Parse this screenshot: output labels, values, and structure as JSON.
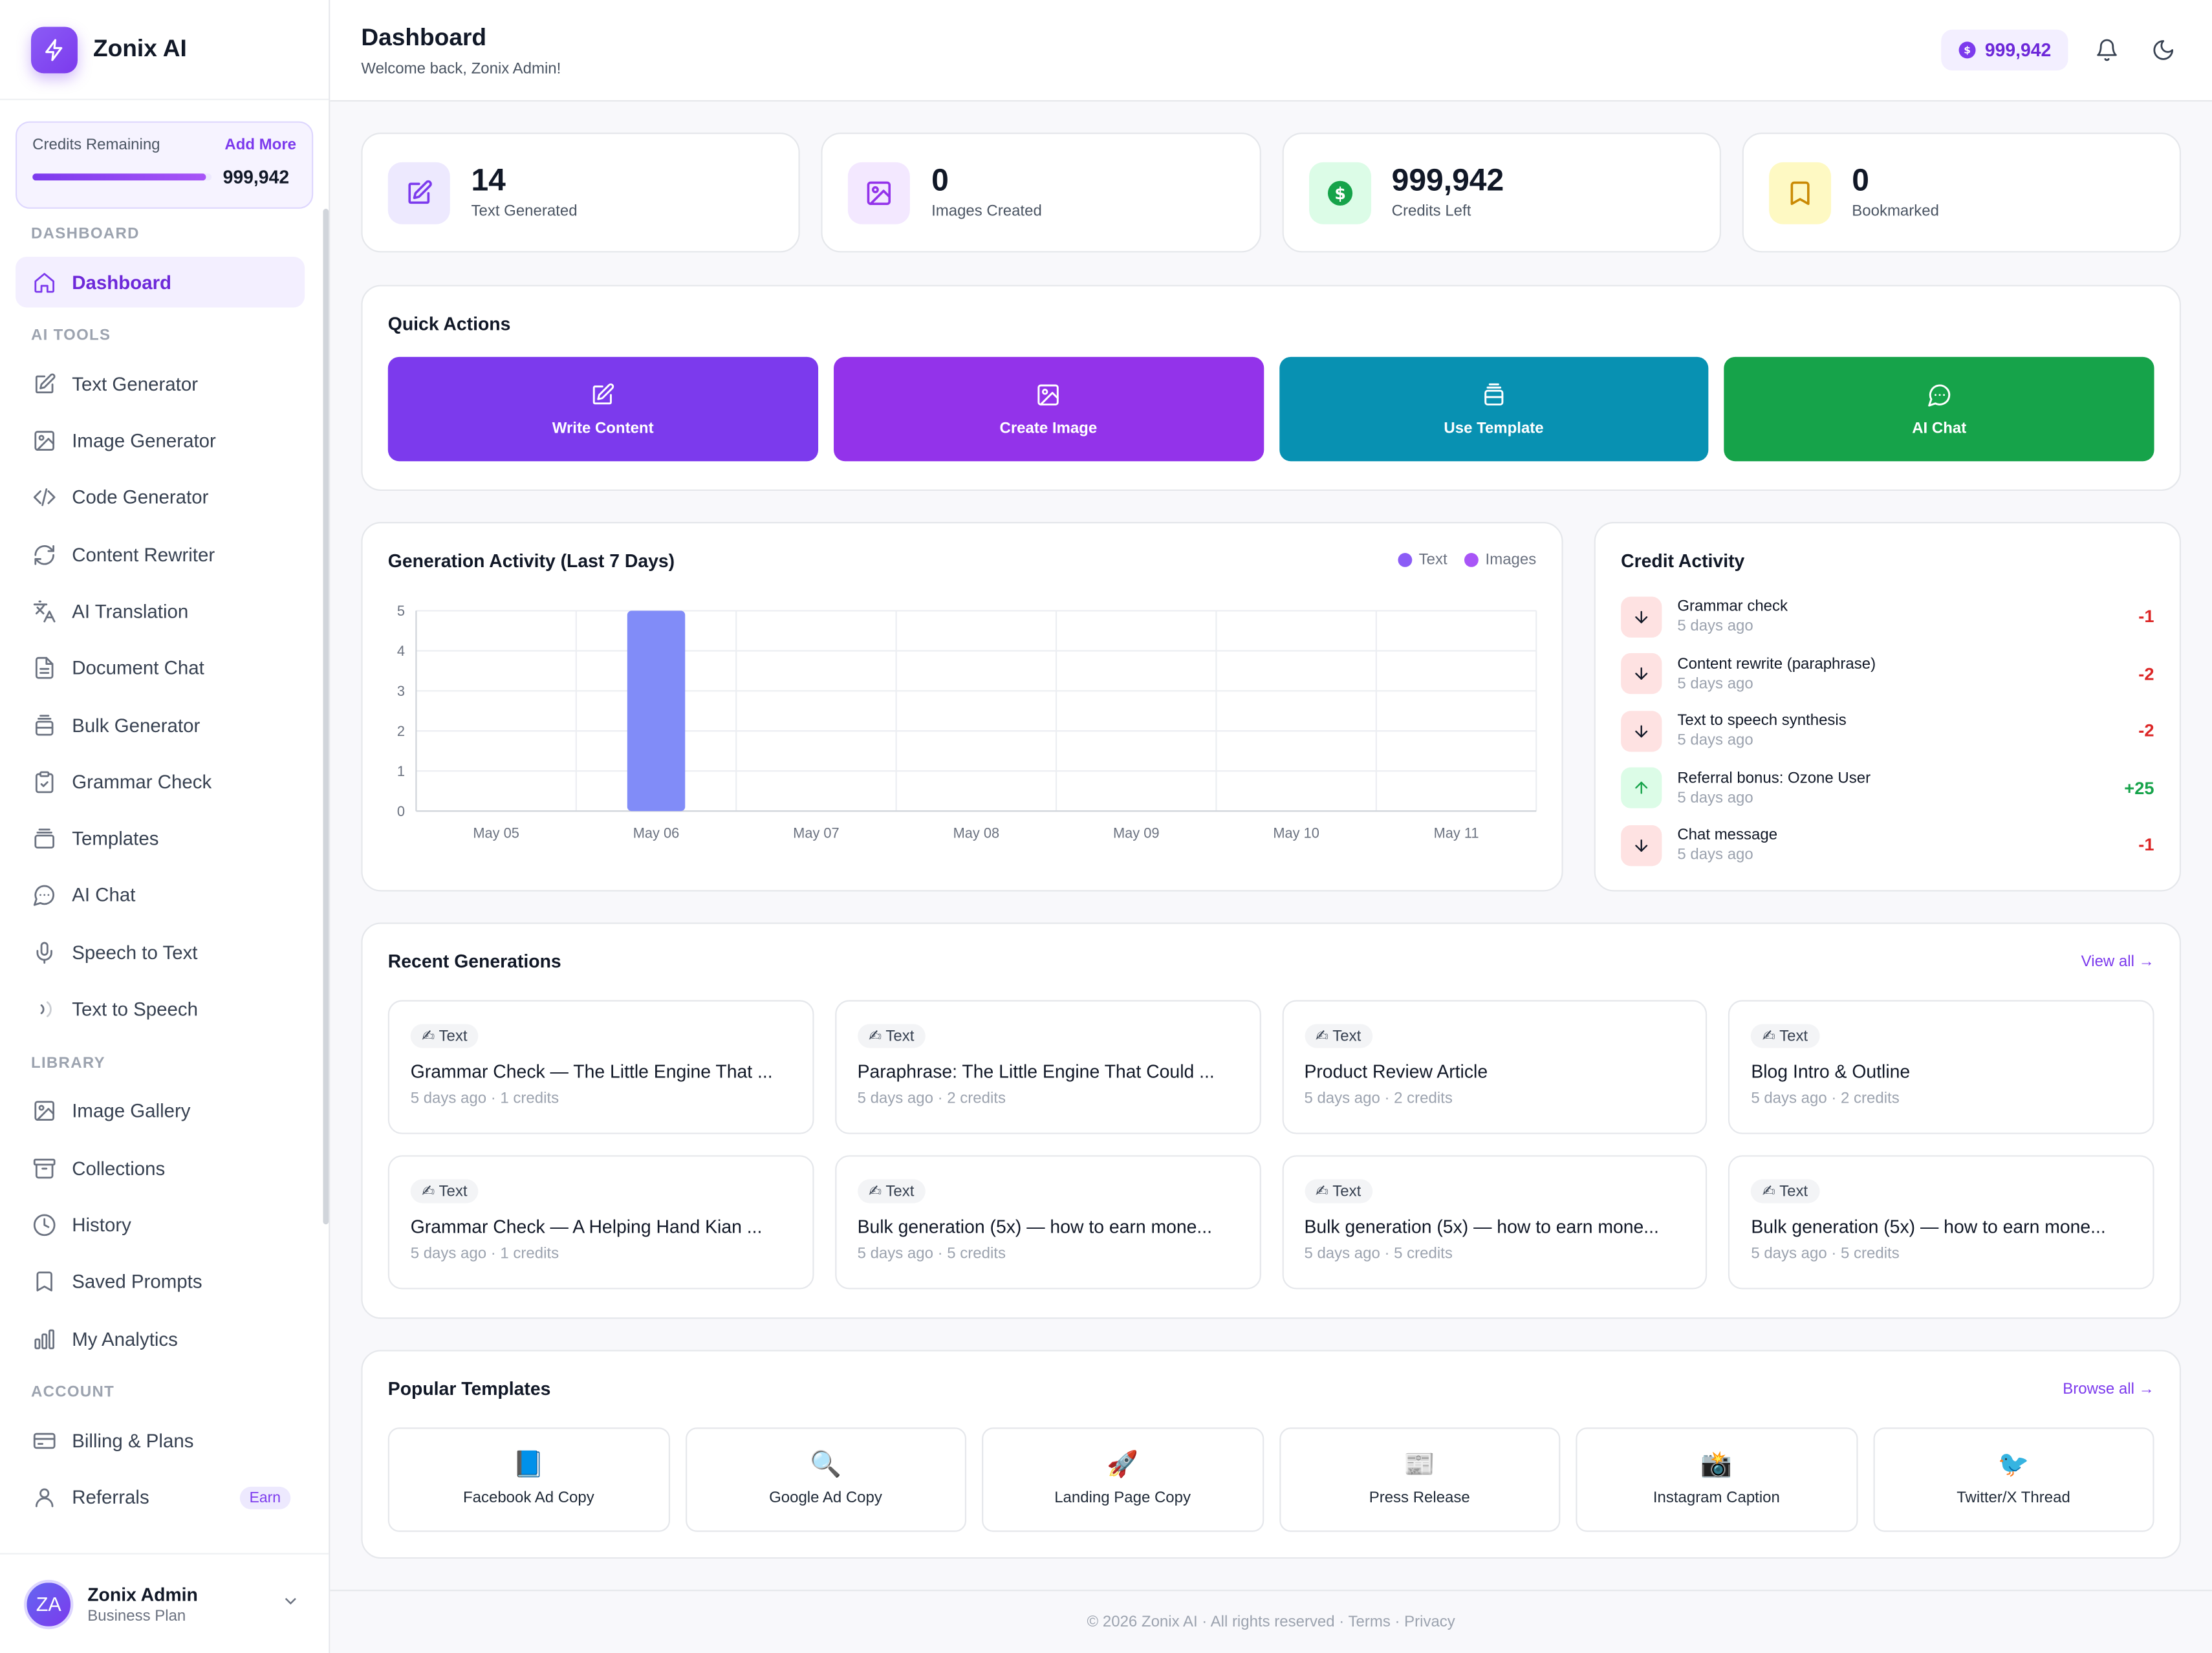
{
  "brand": {
    "name": "Zonix AI"
  },
  "credits_card": {
    "label": "Credits Remaining",
    "add_more": "Add More",
    "value": "999,942",
    "fill_fraction": 0.97
  },
  "nav": {
    "sections": [
      {
        "title": "DASHBOARD",
        "items": [
          {
            "label": "Dashboard",
            "icon": "home-icon",
            "active": true
          }
        ]
      },
      {
        "title": "AI TOOLS",
        "items": [
          {
            "label": "Text Generator",
            "icon": "edit-icon"
          },
          {
            "label": "Image Generator",
            "icon": "image-icon"
          },
          {
            "label": "Code Generator",
            "icon": "code-icon"
          },
          {
            "label": "Content Rewriter",
            "icon": "refresh-icon"
          },
          {
            "label": "AI Translation",
            "icon": "translate-icon"
          },
          {
            "label": "Document Chat",
            "icon": "document-icon"
          },
          {
            "label": "Bulk Generator",
            "icon": "layers-icon"
          },
          {
            "label": "Grammar Check",
            "icon": "clipboard-check-icon"
          },
          {
            "label": "Templates",
            "icon": "template-icon"
          },
          {
            "label": "AI Chat",
            "icon": "chat-icon"
          },
          {
            "label": "Speech to Text",
            "icon": "microphone-icon"
          },
          {
            "label": "Text to Speech",
            "icon": "speaker-icon"
          }
        ]
      },
      {
        "title": "LIBRARY",
        "items": [
          {
            "label": "Image Gallery",
            "icon": "image-icon"
          },
          {
            "label": "Collections",
            "icon": "archive-icon"
          },
          {
            "label": "History",
            "icon": "clock-icon"
          },
          {
            "label": "Saved Prompts",
            "icon": "bookmark-icon"
          },
          {
            "label": "My Analytics",
            "icon": "bar-chart-icon"
          }
        ]
      },
      {
        "title": "ACCOUNT",
        "items": [
          {
            "label": "Billing & Plans",
            "icon": "credit-card-icon"
          },
          {
            "label": "Referrals",
            "icon": "user-icon",
            "badge": "Earn"
          }
        ]
      }
    ]
  },
  "user": {
    "initials": "ZA",
    "name": "Zonix Admin",
    "plan": "Business Plan"
  },
  "header": {
    "title": "Dashboard",
    "subtitle": "Welcome back, Zonix Admin!",
    "credits": "999,942"
  },
  "stats": [
    {
      "value": "14",
      "label": "Text Generated",
      "icon": "edit-icon",
      "bg": "#ede9fe",
      "fg": "#7c3aed"
    },
    {
      "value": "0",
      "label": "Images Created",
      "icon": "image-icon",
      "bg": "#f3e8ff",
      "fg": "#9333ea"
    },
    {
      "value": "999,942",
      "label": "Credits Left",
      "icon": "dollar-icon",
      "bg": "#dcfce7",
      "fg": "#16a34a"
    },
    {
      "value": "0",
      "label": "Bookmarked",
      "icon": "bookmark-icon",
      "bg": "#fef9c3",
      "fg": "#ca8a04"
    }
  ],
  "quick_actions": {
    "title": "Quick Actions",
    "items": [
      {
        "label": "Write Content",
        "icon": "edit-icon",
        "color": "#7c3aed"
      },
      {
        "label": "Create Image",
        "icon": "image-icon",
        "color": "#9333ea"
      },
      {
        "label": "Use Template",
        "icon": "layers-icon",
        "color": "#0891b2"
      },
      {
        "label": "AI Chat",
        "icon": "chat-icon",
        "color": "#16a34a"
      }
    ]
  },
  "chart_data": {
    "type": "bar",
    "title": "Generation Activity (Last 7 Days)",
    "categories": [
      "May 05",
      "May 06",
      "May 07",
      "May 08",
      "May 09",
      "May 10",
      "May 11"
    ],
    "series": [
      {
        "name": "Text",
        "values": [
          0,
          5,
          0,
          0,
          0,
          0,
          0
        ],
        "color": "#818cf8"
      },
      {
        "name": "Images",
        "values": [
          0,
          0,
          0,
          0,
          0,
          0,
          0
        ],
        "color": "#a855f7"
      }
    ],
    "legend_colors": {
      "Text": "#8b5cf6",
      "Images": "#a855f7"
    },
    "ylim": [
      0,
      5
    ],
    "yticks": [
      "0",
      "1",
      "2",
      "3",
      "4",
      "5"
    ],
    "grid": true,
    "legend": "top-right"
  },
  "credit_activity": {
    "title": "Credit Activity",
    "items": [
      {
        "name": "Grammar check",
        "time": "5 days ago",
        "amount": "-1",
        "direction": "down"
      },
      {
        "name": "Content rewrite (paraphrase)",
        "time": "5 days ago",
        "amount": "-2",
        "direction": "down"
      },
      {
        "name": "Text to speech synthesis",
        "time": "5 days ago",
        "amount": "-2",
        "direction": "down"
      },
      {
        "name": "Referral bonus: Ozone User",
        "time": "5 days ago",
        "amount": "+25",
        "direction": "up"
      },
      {
        "name": "Chat message",
        "time": "5 days ago",
        "amount": "-1",
        "direction": "down"
      }
    ]
  },
  "recent": {
    "title": "Recent Generations",
    "view_all": "View all →",
    "items": [
      {
        "tag": "✍ Text",
        "title": "Grammar Check — The Little Engine That ...",
        "meta": "5 days ago · 1 credits"
      },
      {
        "tag": "✍ Text",
        "title": "Paraphrase: The Little Engine That Could ...",
        "meta": "5 days ago · 2 credits"
      },
      {
        "tag": "✍ Text",
        "title": "Product Review Article",
        "meta": "5 days ago · 2 credits"
      },
      {
        "tag": "✍ Text",
        "title": "Blog Intro & Outline",
        "meta": "5 days ago · 2 credits"
      },
      {
        "tag": "✍ Text",
        "title": "Grammar Check — A Helping Hand Kian ...",
        "meta": "5 days ago · 1 credits"
      },
      {
        "tag": "✍ Text",
        "title": "Bulk generation (5x) — how to earn mone...",
        "meta": "5 days ago · 5 credits"
      },
      {
        "tag": "✍ Text",
        "title": "Bulk generation (5x) — how to earn mone...",
        "meta": "5 days ago · 5 credits"
      },
      {
        "tag": "✍ Text",
        "title": "Bulk generation (5x) — how to earn mone...",
        "meta": "5 days ago · 5 credits"
      }
    ]
  },
  "templates": {
    "title": "Popular Templates",
    "browse_all": "Browse all →",
    "items": [
      {
        "label": "Facebook Ad Copy",
        "icon": "📘"
      },
      {
        "label": "Google Ad Copy",
        "icon": "🔍"
      },
      {
        "label": "Landing Page Copy",
        "icon": "🚀"
      },
      {
        "label": "Press Release",
        "icon": "📰"
      },
      {
        "label": "Instagram Caption",
        "icon": "📸"
      },
      {
        "label": "Twitter/X Thread",
        "icon": "🐦"
      }
    ]
  },
  "footer": {
    "text": "© 2026 Zonix AI · All rights reserved · Terms · Privacy"
  }
}
